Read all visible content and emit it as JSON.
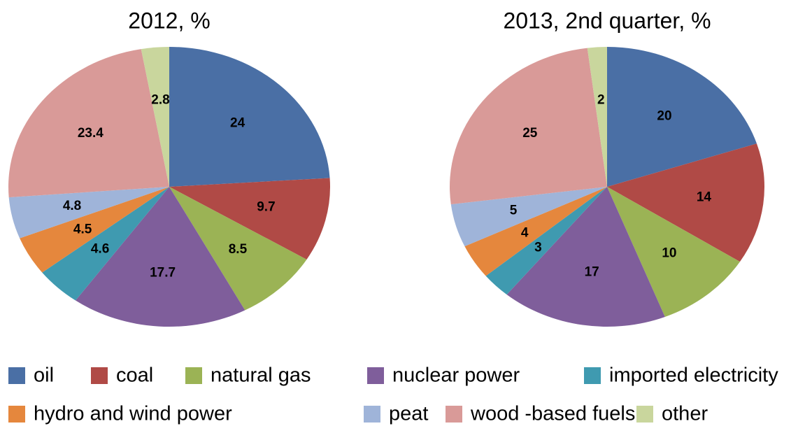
{
  "legend": {
    "categories": [
      "oil",
      "coal",
      "natural gas",
      "nuclear power",
      "imported electricity",
      "hydro and wind power",
      "peat",
      "wood -based fuels",
      "other"
    ],
    "colors": [
      "#4a6fa5",
      "#b04a46",
      "#9bb355",
      "#7f5e9b",
      "#3f9ab0",
      "#e5873d",
      "#9fb4d9",
      "#d99a98",
      "#c9d69d"
    ]
  },
  "chart_data": [
    {
      "type": "pie",
      "title": "2012, %",
      "values": [
        24,
        9.7,
        8.5,
        17.7,
        4.6,
        4.5,
        4.8,
        23.4,
        2.8
      ]
    },
    {
      "type": "pie",
      "title": "2013, 2nd quarter, %",
      "values": [
        20,
        14,
        10,
        17,
        3,
        4,
        5,
        25,
        2
      ]
    }
  ]
}
